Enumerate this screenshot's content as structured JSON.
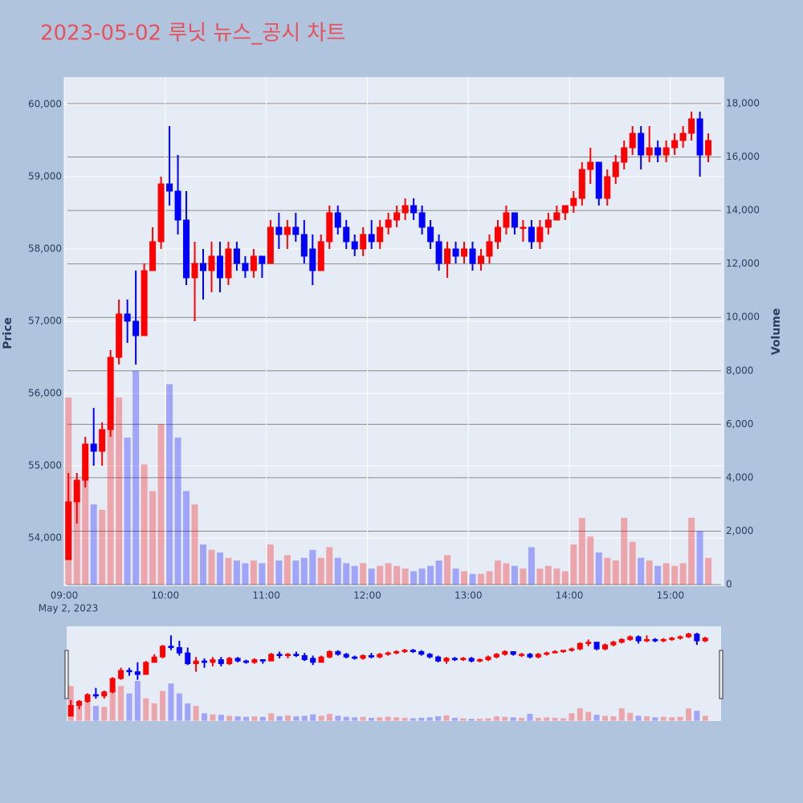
{
  "chart_data": {
    "type": "candlestick",
    "title": "2023-05-02 루닛 뉴스_공시 차트",
    "ylabel": "Price",
    "y2label": "Volume",
    "xdate": "May 2, 2023",
    "increasing_color": "#ff0000",
    "decreasing_color": "#0000ff",
    "grid": true,
    "rangeslider": true,
    "xlim": [
      "2023-05-02 09:00",
      "2023-05-02 15:32"
    ],
    "xticks": [
      {
        "value": "2023-05-02 09:00",
        "label": "09:00"
      },
      {
        "value": "2023-05-02 10:00",
        "label": "10:00"
      },
      {
        "value": "2023-05-02 11:00",
        "label": "11:00"
      },
      {
        "value": "2023-05-02 12:00",
        "label": "12:00"
      },
      {
        "value": "2023-05-02 13:00",
        "label": "13:00"
      },
      {
        "value": "2023-05-02 14:00",
        "label": "14:00"
      },
      {
        "value": "2023-05-02 15:00",
        "label": "15:00"
      }
    ],
    "ylim": [
      53333,
      60378
    ],
    "yticks": [
      {
        "value": 54000,
        "label": "54,000"
      },
      {
        "value": 55000,
        "label": "55,000"
      },
      {
        "value": 56000,
        "label": "56,000"
      },
      {
        "value": 57000,
        "label": "57,000"
      },
      {
        "value": 58000,
        "label": "58,000"
      },
      {
        "value": 59000,
        "label": "59,000"
      },
      {
        "value": 60000,
        "label": "60,000"
      }
    ],
    "y2lim": [
      -60,
      18990
    ],
    "y2ticks": [
      0,
      {
        "value": 2000,
        "label": "2,000"
      },
      {
        "value": 4000,
        "label": "4,000"
      },
      {
        "value": 6000,
        "label": "6,000"
      },
      {
        "value": 8000,
        "label": "8,000"
      },
      {
        "value": 10000,
        "label": "10,000"
      },
      {
        "value": 12000,
        "label": "12,000"
      },
      {
        "value": 14000,
        "label": "14,000"
      },
      {
        "value": 16000,
        "label": "16,000"
      },
      {
        "value": 18000,
        "label": "18,000"
      }
    ],
    "x": [
      "2023-05-02 09:00",
      "2023-05-02 09:05",
      "2023-05-02 09:10",
      "2023-05-02 09:15",
      "2023-05-02 09:20",
      "2023-05-02 09:25",
      "2023-05-02 09:30",
      "2023-05-02 09:35",
      "2023-05-02 09:40",
      "2023-05-02 09:45",
      "2023-05-02 09:50",
      "2023-05-02 09:55",
      "2023-05-02 10:00",
      "2023-05-02 10:05",
      "2023-05-02 10:10",
      "2023-05-02 10:15",
      "2023-05-02 10:20",
      "2023-05-02 10:25",
      "2023-05-02 10:30",
      "2023-05-02 10:35",
      "2023-05-02 10:40",
      "2023-05-02 10:45",
      "2023-05-02 10:50",
      "2023-05-02 10:55",
      "2023-05-02 11:00",
      "2023-05-02 11:05",
      "2023-05-02 11:10",
      "2023-05-02 11:15",
      "2023-05-02 11:20",
      "2023-05-02 11:25",
      "2023-05-02 11:30",
      "2023-05-02 11:35",
      "2023-05-02 11:40",
      "2023-05-02 11:45",
      "2023-05-02 11:50",
      "2023-05-02 11:55",
      "2023-05-02 12:00",
      "2023-05-02 12:05",
      "2023-05-02 12:10",
      "2023-05-02 12:15",
      "2023-05-02 12:20",
      "2023-05-02 12:25",
      "2023-05-02 12:30",
      "2023-05-02 12:35",
      "2023-05-02 12:40",
      "2023-05-02 12:45",
      "2023-05-02 12:50",
      "2023-05-02 12:55",
      "2023-05-02 13:00",
      "2023-05-02 13:05",
      "2023-05-02 13:10",
      "2023-05-02 13:15",
      "2023-05-02 13:20",
      "2023-05-02 13:25",
      "2023-05-02 13:30",
      "2023-05-02 13:35",
      "2023-05-02 13:40",
      "2023-05-02 13:45",
      "2023-05-02 13:50",
      "2023-05-02 13:55",
      "2023-05-02 14:00",
      "2023-05-02 14:05",
      "2023-05-02 14:10",
      "2023-05-02 14:15",
      "2023-05-02 14:20",
      "2023-05-02 14:25",
      "2023-05-02 14:30",
      "2023-05-02 14:35",
      "2023-05-02 14:40",
      "2023-05-02 14:45",
      "2023-05-02 14:50",
      "2023-05-02 14:55",
      "2023-05-02 15:00",
      "2023-05-02 15:05",
      "2023-05-02 15:10",
      "2023-05-02 15:15",
      "2023-05-02 15:20"
    ],
    "open": [
      53700,
      54500,
      54800,
      55300,
      55200,
      55500,
      56500,
      57100,
      57000,
      56800,
      57700,
      58100,
      58900,
      58800,
      58400,
      57600,
      57800,
      57700,
      57900,
      57600,
      58000,
      57800,
      57700,
      57900,
      57800,
      58300,
      58200,
      58300,
      58200,
      58000,
      57700,
      58100,
      58500,
      58300,
      58100,
      58000,
      58200,
      58100,
      58300,
      58400,
      58500,
      58600,
      58500,
      58300,
      58100,
      57800,
      58000,
      57900,
      58000,
      57800,
      57900,
      58100,
      58300,
      58500,
      58300,
      58300,
      58100,
      58300,
      58400,
      58500,
      58600,
      58700,
      59100,
      59200,
      58700,
      59000,
      59200,
      59400,
      59600,
      59300,
      59400,
      59300,
      59400,
      59500,
      59600,
      59800,
      59300
    ],
    "high": [
      54900,
      54900,
      55400,
      55800,
      55600,
      56600,
      57300,
      57300,
      57700,
      57800,
      58300,
      59000,
      59700,
      59300,
      58800,
      58100,
      58000,
      58100,
      58100,
      58100,
      58100,
      57900,
      58000,
      57900,
      58400,
      58500,
      58400,
      58500,
      58400,
      58200,
      58200,
      58600,
      58600,
      58400,
      58200,
      58300,
      58400,
      58400,
      58500,
      58600,
      58700,
      58700,
      58600,
      58400,
      58200,
      58100,
      58100,
      58100,
      58100,
      58000,
      58200,
      58400,
      58600,
      58500,
      58400,
      58400,
      58400,
      58500,
      58600,
      58600,
      58800,
      59200,
      59400,
      59200,
      59100,
      59300,
      59500,
      59700,
      59700,
      59700,
      59500,
      59500,
      59600,
      59700,
      59900,
      59900,
      59600
    ],
    "low": [
      53700,
      54200,
      54700,
      55000,
      55000,
      55400,
      56400,
      56700,
      56400,
      56800,
      57700,
      58000,
      58600,
      58200,
      57500,
      57000,
      57300,
      57400,
      57400,
      57500,
      57700,
      57600,
      57600,
      57600,
      57800,
      58000,
      58000,
      58100,
      57800,
      57500,
      57700,
      58000,
      58200,
      58000,
      57900,
      57900,
      58000,
      58000,
      58200,
      58300,
      58400,
      58400,
      58200,
      58000,
      57700,
      57600,
      57800,
      57800,
      57700,
      57700,
      57800,
      58000,
      58200,
      58200,
      58100,
      58000,
      58000,
      58200,
      58400,
      58400,
      58500,
      58600,
      58900,
      58600,
      58600,
      58900,
      59100,
      59300,
      59100,
      59200,
      59200,
      59200,
      59300,
      59400,
      59500,
      59000,
      59200
    ],
    "close": [
      54500,
      54800,
      55300,
      55200,
      55500,
      56500,
      57100,
      57000,
      56800,
      57700,
      58100,
      58900,
      58800,
      58400,
      57600,
      57800,
      57700,
      57900,
      57600,
      58000,
      57800,
      57700,
      57900,
      57800,
      58300,
      58200,
      58300,
      58200,
      57900,
      57700,
      58100,
      58500,
      58300,
      58100,
      58000,
      58200,
      58100,
      58300,
      58400,
      58500,
      58600,
      58500,
      58300,
      58100,
      57800,
      58000,
      57900,
      58000,
      57800,
      57900,
      58100,
      58300,
      58500,
      58300,
      58300,
      58100,
      58300,
      58400,
      58500,
      58600,
      58700,
      59100,
      59200,
      58700,
      59000,
      59200,
      59400,
      59600,
      59300,
      59400,
      59300,
      59400,
      59500,
      59600,
      59800,
      59300,
      59500
    ],
    "volume": [
      7000,
      3500,
      4500,
      3000,
      2800,
      6000,
      7000,
      5500,
      8000,
      4500,
      3500,
      6000,
      7500,
      5500,
      3500,
      3000,
      1500,
      1300,
      1200,
      1000,
      900,
      800,
      900,
      800,
      1500,
      900,
      1100,
      900,
      1000,
      1300,
      1000,
      1400,
      1000,
      800,
      700,
      800,
      600,
      700,
      800,
      700,
      600,
      500,
      600,
      700,
      900,
      1100,
      600,
      500,
      400,
      400,
      500,
      900,
      800,
      700,
      600,
      1400,
      600,
      700,
      600,
      500,
      1500,
      2500,
      1800,
      1200,
      1000,
      900,
      2500,
      1600,
      1000,
      900,
      700,
      800,
      700,
      800,
      2500,
      2000,
      1000
    ]
  }
}
